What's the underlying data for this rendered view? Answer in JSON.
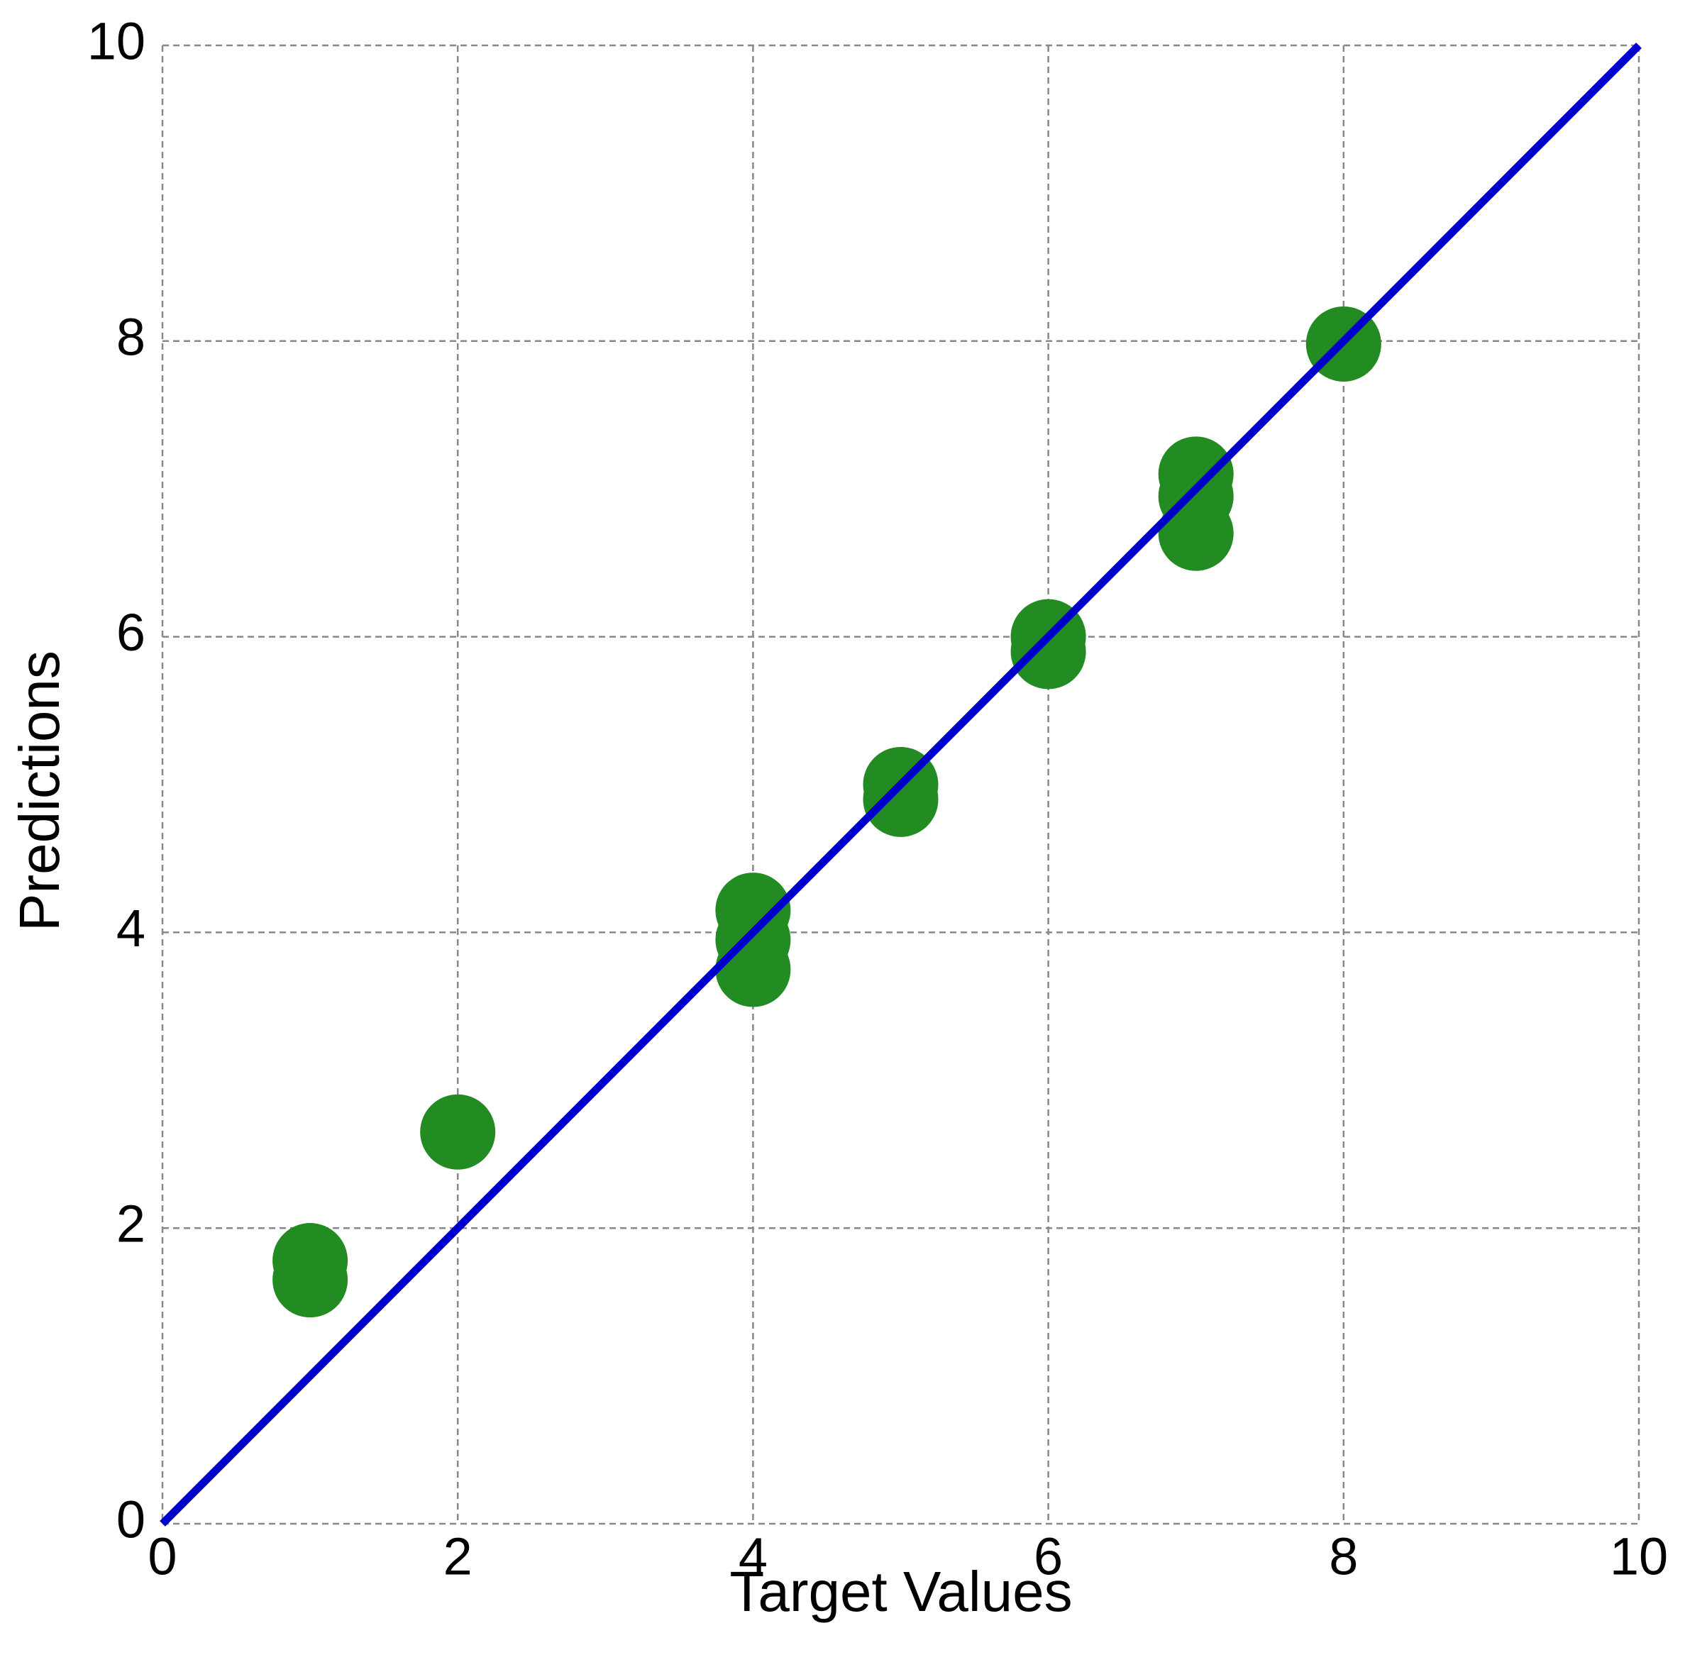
{
  "chart_data": {
    "type": "scatter",
    "xlabel": "Target Values",
    "ylabel": "Predictions",
    "series": [
      {
        "color": "#228b22",
        "x": [
          1,
          1,
          2,
          4,
          4,
          4,
          5,
          5,
          6,
          6,
          7,
          7,
          7,
          8
        ],
        "values": [
          1.78,
          1.65,
          2.65,
          4.15,
          3.95,
          3.75,
          5.0,
          4.9,
          6.0,
          5.9,
          7.1,
          6.95,
          6.7,
          7.98
        ]
      }
    ],
    "reference_line": {
      "x": [
        0,
        10
      ],
      "y": [
        0,
        10
      ],
      "color": "#0000cc"
    },
    "xlim": [
      0,
      10
    ],
    "ylim": [
      0,
      10
    ],
    "xticks": [
      0,
      2,
      4,
      6,
      8,
      10
    ],
    "yticks": [
      0,
      2,
      4,
      6,
      8,
      10
    ],
    "grid": true
  }
}
